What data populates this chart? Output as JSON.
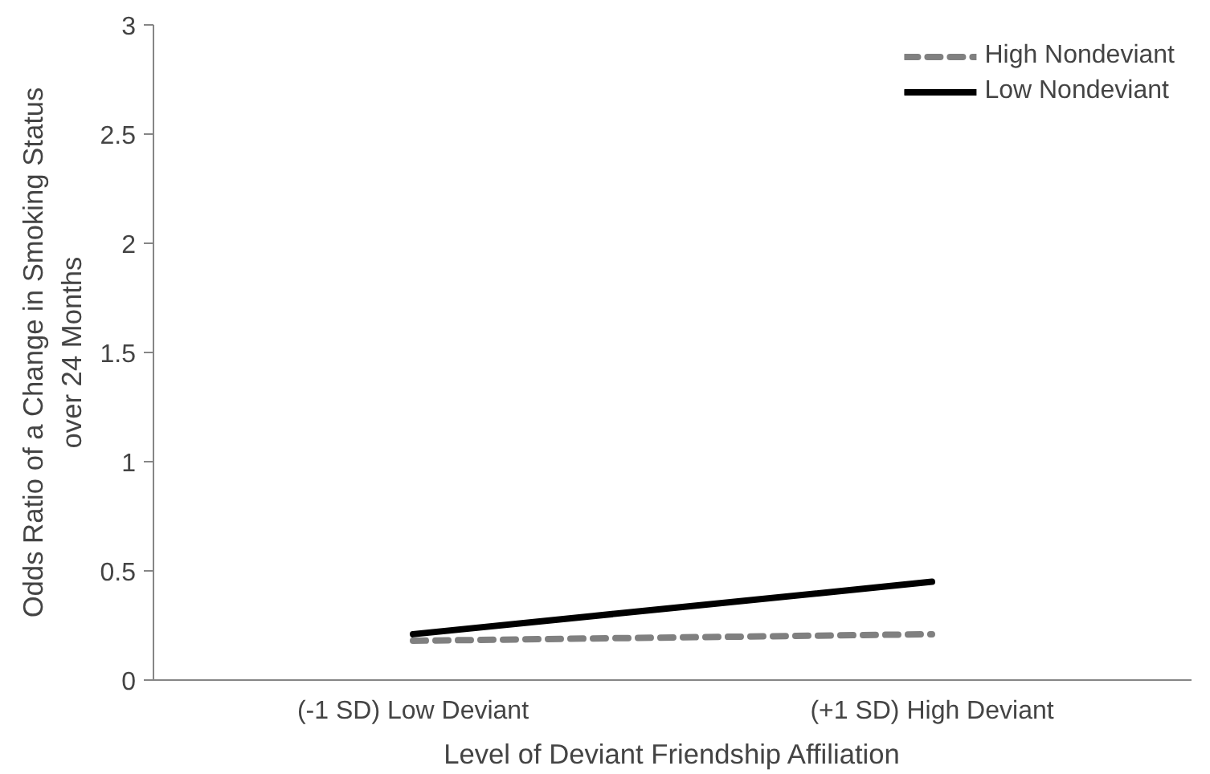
{
  "chart_data": {
    "type": "line",
    "xlabel": "Level of Deviant Friendship Affiliation",
    "ylabel": "Odds Ratio of a Change in Smoking Status\nover 24 Months",
    "categories": [
      "(-1 SD) Low Deviant",
      "(+1 SD) High Deviant"
    ],
    "series": [
      {
        "name": "High Nondeviant",
        "color": "#808080",
        "values": [
          0.18,
          0.21
        ],
        "line_style": "dashed"
      },
      {
        "name": "Low Nondeviant",
        "color": "#000000",
        "values": [
          0.21,
          0.45
        ],
        "line_style": "solid"
      }
    ],
    "ylim": [
      0,
      3
    ],
    "yticks": [
      0,
      {
        "value": 0.5,
        "label": "0.5"
      },
      1,
      {
        "value": 1.5,
        "label": "1.5"
      },
      2,
      {
        "value": 2.5,
        "label": "2.5"
      },
      3
    ],
    "grid": false,
    "legend": "top right",
    "marker": "none"
  }
}
